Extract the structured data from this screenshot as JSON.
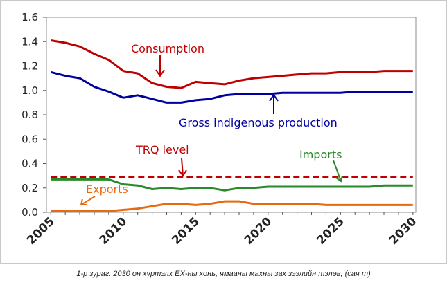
{
  "chart_data": {
    "type": "line",
    "title": "",
    "xlabel": "",
    "ylabel": "",
    "x": [
      2005,
      2006,
      2007,
      2008,
      2009,
      2010,
      2011,
      2012,
      2013,
      2014,
      2015,
      2016,
      2017,
      2018,
      2019,
      2020,
      2021,
      2022,
      2023,
      2024,
      2025,
      2026,
      2027,
      2028,
      2029,
      2030
    ],
    "xticks": [
      "2005",
      "2010",
      "2015",
      "2020",
      "2025",
      "2030"
    ],
    "xlim": [
      2004.7,
      2030.2
    ],
    "ylim": [
      0,
      1.6
    ],
    "yticks": [
      "0.0",
      "0.2",
      "0.4",
      "0.6",
      "0.8",
      "1.0",
      "1.2",
      "1.4",
      "1.6"
    ],
    "grid": false,
    "series": [
      {
        "name": "Consumption",
        "color": "#c00000",
        "dashed": false,
        "values": [
          1.41,
          1.39,
          1.36,
          1.3,
          1.25,
          1.16,
          1.14,
          1.06,
          1.03,
          1.02,
          1.07,
          1.06,
          1.05,
          1.08,
          1.1,
          1.11,
          1.12,
          1.13,
          1.14,
          1.14,
          1.15,
          1.15,
          1.15,
          1.16,
          1.16,
          1.16
        ]
      },
      {
        "name": "Gross indigenous production",
        "color": "#0000a0",
        "dashed": false,
        "values": [
          1.15,
          1.12,
          1.1,
          1.03,
          0.99,
          0.94,
          0.96,
          0.93,
          0.9,
          0.9,
          0.92,
          0.93,
          0.96,
          0.97,
          0.97,
          0.97,
          0.98,
          0.98,
          0.98,
          0.98,
          0.98,
          0.99,
          0.99,
          0.99,
          0.99,
          0.99
        ]
      },
      {
        "name": "TRQ level",
        "color": "#c00000",
        "dashed": true,
        "values": [
          0.29,
          0.29,
          0.29,
          0.29,
          0.29,
          0.29,
          0.29,
          0.29,
          0.29,
          0.29,
          0.29,
          0.29,
          0.29,
          0.29,
          0.29,
          0.29,
          0.29,
          0.29,
          0.29,
          0.29,
          0.29,
          0.29,
          0.29,
          0.29,
          0.29,
          0.29
        ]
      },
      {
        "name": "Imports",
        "color": "#2a8a2a",
        "dashed": false,
        "values": [
          0.27,
          0.27,
          0.27,
          0.27,
          0.27,
          0.23,
          0.22,
          0.19,
          0.2,
          0.19,
          0.2,
          0.2,
          0.18,
          0.2,
          0.2,
          0.21,
          0.21,
          0.21,
          0.21,
          0.21,
          0.21,
          0.21,
          0.21,
          0.22,
          0.22,
          0.22
        ]
      },
      {
        "name": "Exports",
        "color": "#e86a10",
        "dashed": false,
        "values": [
          0.01,
          0.01,
          0.01,
          0.01,
          0.01,
          0.02,
          0.03,
          0.05,
          0.07,
          0.07,
          0.06,
          0.07,
          0.09,
          0.09,
          0.07,
          0.07,
          0.07,
          0.07,
          0.07,
          0.06,
          0.06,
          0.06,
          0.06,
          0.06,
          0.06,
          0.06
        ]
      }
    ]
  },
  "annotations": {
    "consumption": "Consumption",
    "production": "Gross indigenous production",
    "trq": "TRQ level",
    "imports": "Imports",
    "exports": "Exports"
  },
  "caption": "1-р зураг. 2030 он хүртэлх ЕХ-ны хонь, ямааны махны зах зээлийн тэлөв, (сая т)"
}
